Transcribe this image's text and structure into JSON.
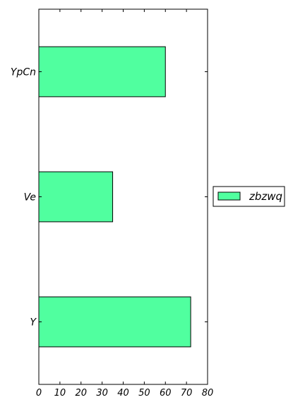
{
  "chart_data": {
    "type": "bar",
    "orientation": "horizontal",
    "categories": [
      "YpCn",
      "Ve",
      "Y"
    ],
    "series": [
      {
        "name": "zbzwq",
        "values": [
          60,
          35,
          72
        ]
      }
    ],
    "title": "",
    "xlabel": "",
    "ylabel": "",
    "xlim": [
      0,
      80
    ],
    "xticks": [
      0,
      10,
      20,
      30,
      40,
      50,
      60,
      70,
      80
    ],
    "grid": false,
    "legend_position": "right, outside",
    "colors": {
      "bar_fill": "#50ff9f",
      "bar_edge": "#000000"
    }
  }
}
